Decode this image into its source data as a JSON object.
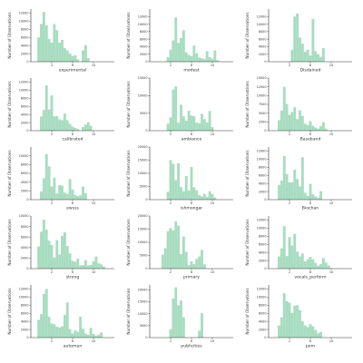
{
  "style": {
    "bar_color": "#a8dcc0",
    "axis_color": "#333333"
  },
  "chart_data": [
    {
      "type": "bar",
      "xlabel": "experimental",
      "ylabel": "Number of Observations",
      "xlim": [
        -2,
        14
      ],
      "ylim": [
        0,
        13000
      ],
      "xticks": [
        2,
        6,
        10
      ],
      "yticks": [
        0,
        2000,
        4000,
        6000,
        8000,
        10000,
        12000
      ],
      "x": [
        -0.5,
        0,
        0.5,
        1,
        1.5,
        2,
        2.5,
        3,
        3.5,
        4,
        4.5,
        5,
        5.5,
        6,
        6.5,
        7,
        7.5,
        8,
        8.5,
        9
      ],
      "values": [
        6000,
        9300,
        12300,
        9000,
        5600,
        4700,
        9300,
        7800,
        4700,
        5400,
        3400,
        2800,
        2000,
        1400,
        1600,
        600,
        0,
        2800,
        4100,
        900
      ]
    },
    {
      "type": "bar",
      "xlabel": "modest",
      "ylabel": "Number of Observations",
      "xlim": [
        -2,
        14
      ],
      "ylim": [
        0,
        14000
      ],
      "xticks": [
        2,
        6,
        10
      ],
      "yticks": [
        0,
        2000,
        4000,
        6000,
        8000,
        10000,
        12000
      ],
      "x": [
        1.5,
        2,
        2.5,
        3,
        3.5,
        4,
        4.5,
        5,
        5.5,
        6,
        6.5,
        7,
        7.5,
        8,
        8.5,
        9,
        9.5,
        10,
        10.5,
        11
      ],
      "values": [
        1200,
        3200,
        5700,
        11800,
        5000,
        6300,
        8400,
        2500,
        1800,
        1500,
        4300,
        2200,
        1100,
        900,
        700,
        2800,
        1200,
        800,
        3000,
        400
      ]
    },
    {
      "type": "bar",
      "xlabel": "Disdained",
      "ylabel": "Number of Observations",
      "xlim": [
        -2,
        14
      ],
      "ylim": [
        0,
        14000
      ],
      "xticks": [
        2,
        6,
        10
      ],
      "yticks": [
        0,
        2000,
        4000,
        6000,
        8000,
        10000,
        12000
      ],
      "x": [
        2.5,
        3,
        3.5,
        4,
        4.5,
        5,
        5.5,
        6,
        6.5,
        7,
        7.5,
        8,
        8.5
      ],
      "values": [
        3200,
        12000,
        12800,
        6400,
        4800,
        2600,
        3200,
        1600,
        11400,
        2800,
        2000,
        1200,
        3600
      ]
    },
    {
      "type": "bar",
      "xlabel": "calibrated",
      "ylabel": "Number of Observations",
      "xlim": [
        -2,
        14
      ],
      "ylim": [
        0,
        13000
      ],
      "xticks": [
        2,
        6,
        10
      ],
      "yticks": [
        0,
        2000,
        4000,
        6000,
        8000,
        10000,
        12000
      ],
      "x": [
        0,
        0.5,
        1,
        1.5,
        2,
        2.5,
        3,
        3.5,
        4,
        4.5,
        5,
        5.5,
        6,
        6.5,
        7,
        7.5,
        8,
        8.5,
        9,
        9.5
      ],
      "values": [
        3500,
        5100,
        11200,
        5200,
        8700,
        3500,
        3600,
        2800,
        2600,
        4200,
        2600,
        1700,
        1000,
        700,
        400,
        0,
        900,
        1500,
        2100,
        1200
      ]
    },
    {
      "type": "bar",
      "xlabel": "ambiance",
      "ylabel": "Number of Observations",
      "xlim": [
        -2,
        14
      ],
      "ylim": [
        0,
        15000
      ],
      "xticks": [
        2,
        6,
        10
      ],
      "yticks": [
        0,
        5000,
        10000,
        15000
      ],
      "x": [
        1.5,
        2,
        2.5,
        3,
        3.5,
        4,
        4.5,
        5,
        5.5,
        6,
        6.5,
        7,
        7.5,
        8,
        8.5,
        9,
        9.5,
        10
      ],
      "values": [
        2000,
        3800,
        11700,
        12600,
        2300,
        7400,
        4100,
        2800,
        5700,
        4300,
        4100,
        2300,
        2100,
        4800,
        3300,
        2300,
        5600,
        1000
      ]
    },
    {
      "type": "bar",
      "xlabel": "Baseband",
      "ylabel": "Number of Observations",
      "xlim": [
        -2,
        14
      ],
      "ylim": [
        0,
        15000
      ],
      "xticks": [
        2,
        6,
        10
      ],
      "yticks": [
        0,
        2500,
        5000,
        7500,
        10000,
        12500,
        15000
      ],
      "x": [
        0,
        0.5,
        1,
        1.5,
        2,
        2.5,
        3,
        3.5,
        4,
        4.5,
        5,
        5.5,
        6,
        6.5,
        7,
        7.5,
        8,
        8.5,
        9
      ],
      "values": [
        3000,
        5700,
        12500,
        7600,
        4500,
        5300,
        6700,
        3300,
        5800,
        4200,
        2000,
        1600,
        2700,
        1400,
        900,
        600,
        1300,
        2400,
        600
      ]
    },
    {
      "type": "bar",
      "xlabel": "ewsss",
      "ylabel": "Number of Observations",
      "xlim": [
        -2,
        14
      ],
      "ylim": [
        0,
        12000
      ],
      "xticks": [
        2,
        6,
        10
      ],
      "yticks": [
        0,
        2000,
        4000,
        6000,
        8000,
        10000
      ],
      "x": [
        0,
        0.5,
        1,
        1.5,
        2,
        2.5,
        3,
        3.5,
        4,
        4.5,
        5,
        5.5,
        6,
        6.5,
        7,
        7.5,
        8,
        8.5
      ],
      "values": [
        1900,
        4900,
        10400,
        7600,
        3000,
        5000,
        1400,
        3300,
        3200,
        1600,
        1300,
        4700,
        2300,
        1100,
        800,
        1000,
        3000,
        1500
      ]
    },
    {
      "type": "bar",
      "xlabel": "ishmongar",
      "ylabel": "Number of Observations",
      "xlim": [
        -2,
        14
      ],
      "ylim": [
        0,
        20000
      ],
      "xticks": [
        2,
        6,
        10
      ],
      "yticks": [
        0,
        5000,
        10000,
        15000,
        20000
      ],
      "x": [
        1.5,
        2,
        2.5,
        3,
        3.5,
        4,
        4.5,
        5,
        5.5,
        6,
        6.5,
        7,
        7.5,
        8,
        8.5,
        9,
        9.5,
        10,
        10.5
      ],
      "values": [
        3000,
        15000,
        13600,
        7400,
        13800,
        4800,
        3200,
        9000,
        3500,
        12400,
        4700,
        3600,
        1700,
        1200,
        2200,
        1000,
        3200,
        2200,
        800
      ]
    },
    {
      "type": "bar",
      "xlabel": "Biochan",
      "ylabel": "Number of Observations",
      "xlim": [
        -2,
        14
      ],
      "ylim": [
        0,
        13000
      ],
      "xticks": [
        2,
        6,
        10
      ],
      "yticks": [
        0,
        2000,
        4000,
        6000,
        8000,
        10000,
        12000
      ],
      "x": [
        0,
        0.5,
        1,
        1.5,
        2,
        2.5,
        3,
        3.5,
        4,
        4.5,
        5,
        5.5,
        6,
        6.5,
        7,
        7.5,
        8
      ],
      "values": [
        3600,
        4700,
        10800,
        6300,
        4300,
        4300,
        7400,
        5100,
        3300,
        10500,
        1700,
        900,
        3900,
        1300,
        800,
        500,
        2100
      ]
    },
    {
      "type": "bar",
      "xlabel": "strong",
      "ylabel": "Number of Observations",
      "xlim": [
        -2,
        14
      ],
      "ylim": [
        0,
        10000
      ],
      "xticks": [
        2,
        6,
        10
      ],
      "yticks": [
        0,
        2000,
        4000,
        6000,
        8000,
        10000
      ],
      "x": [
        -0.5,
        0,
        0.5,
        1,
        1.5,
        2,
        2.5,
        3,
        3.5,
        4,
        4.5,
        5,
        5.5,
        6,
        6.5,
        7,
        7.5,
        8,
        8.5,
        9,
        9.5,
        10,
        10.5,
        11,
        11.5,
        12
      ],
      "values": [
        4200,
        7000,
        9300,
        7400,
        5300,
        4500,
        2100,
        5400,
        2700,
        6200,
        6900,
        4300,
        2900,
        1500,
        1300,
        1900,
        600,
        700,
        1600,
        600,
        700,
        1400,
        2300,
        1000,
        800,
        400
      ]
    },
    {
      "type": "bar",
      "xlabel": "primary",
      "ylabel": "Number of Observations",
      "xlim": [
        -2,
        14
      ],
      "ylim": [
        0,
        20000
      ],
      "xticks": [
        2,
        6,
        10
      ],
      "yticks": [
        0,
        5000,
        10000,
        15000,
        20000
      ],
      "x": [
        0.5,
        1,
        1.5,
        2,
        2.5,
        3,
        3.5,
        4,
        4.5,
        5,
        5.5,
        6,
        6.5,
        7,
        7.5,
        8,
        8.5
      ],
      "values": [
        5300,
        7700,
        14200,
        15400,
        14500,
        18000,
        16400,
        5500,
        12200,
        6400,
        1300,
        2800,
        1700,
        3700,
        4600,
        7100,
        1600
      ]
    },
    {
      "type": "bar",
      "xlabel": "vocals_perform",
      "ylabel": "Number of Observations",
      "xlim": [
        -2,
        14
      ],
      "ylim": [
        0,
        13000
      ],
      "xticks": [
        2,
        6,
        10
      ],
      "yticks": [
        0,
        2000,
        4000,
        6000,
        8000,
        10000,
        12000
      ],
      "x": [
        0,
        0.5,
        1,
        1.5,
        2,
        2.5,
        3,
        3.5,
        4,
        4.5,
        5,
        5.5,
        6,
        6.5,
        7,
        7.5,
        8,
        8.5,
        9,
        9.5
      ],
      "values": [
        3000,
        5000,
        10500,
        3100,
        7800,
        5700,
        8600,
        4200,
        3000,
        3700,
        1800,
        2300,
        2900,
        2300,
        1400,
        700,
        1100,
        2600,
        1500,
        800
      ]
    },
    {
      "type": "bar",
      "xlabel": "automan",
      "ylabel": "Number of Observations",
      "xlim": [
        -2,
        14
      ],
      "ylim": [
        0,
        13000
      ],
      "xticks": [
        2,
        6,
        10
      ],
      "yticks": [
        0,
        2000,
        4000,
        6000,
        8000,
        10000,
        12000
      ],
      "x": [
        -0.5,
        0,
        0.5,
        1,
        1.5,
        2,
        2.5,
        3,
        3.5,
        4,
        4.5,
        5,
        5.5,
        6,
        6.5,
        7,
        7.5,
        8,
        8.5,
        9,
        9.5,
        10,
        10.5,
        11,
        11.5
      ],
      "values": [
        4400,
        5800,
        10800,
        12000,
        5100,
        3500,
        3300,
        2700,
        2500,
        2800,
        5600,
        8700,
        2100,
        1000,
        1800,
        1400,
        5200,
        2200,
        1000,
        700,
        2400,
        900,
        500,
        700,
        1300
      ]
    },
    {
      "type": "bar",
      "xlabel": "publicities",
      "ylabel": "Number of Observations",
      "xlim": [
        -2,
        14
      ],
      "ylim": [
        0,
        22000
      ],
      "xticks": [
        2,
        6,
        10
      ],
      "yticks": [
        0,
        5000,
        10000,
        15000,
        20000
      ],
      "x": [
        2,
        2.5,
        3,
        3.5,
        4,
        4.5,
        5,
        5.5,
        6,
        6.5,
        7,
        7.5,
        8
      ],
      "values": [
        3500,
        16400,
        21000,
        13500,
        15500,
        8500,
        0,
        0,
        0,
        0,
        0,
        2900,
        10200
      ]
    },
    {
      "type": "bar",
      "xlabel": "pom",
      "ylabel": "Number of Observations",
      "xlim": [
        -2,
        14
      ],
      "ylim": [
        0,
        13000
      ],
      "xticks": [
        2,
        6,
        10
      ],
      "yticks": [
        0,
        2000,
        4000,
        6000,
        8000,
        10000,
        12000
      ],
      "x": [
        0,
        0.5,
        1,
        1.5,
        2,
        2.5,
        3,
        3.5,
        4,
        4.5,
        5,
        5.5,
        6,
        6.5,
        7,
        7.5,
        8
      ],
      "values": [
        3000,
        5000,
        11000,
        9000,
        8600,
        6100,
        7900,
        8000,
        6800,
        4000,
        3000,
        2600,
        3300,
        2800,
        1900,
        1100,
        1400
      ]
    }
  ]
}
